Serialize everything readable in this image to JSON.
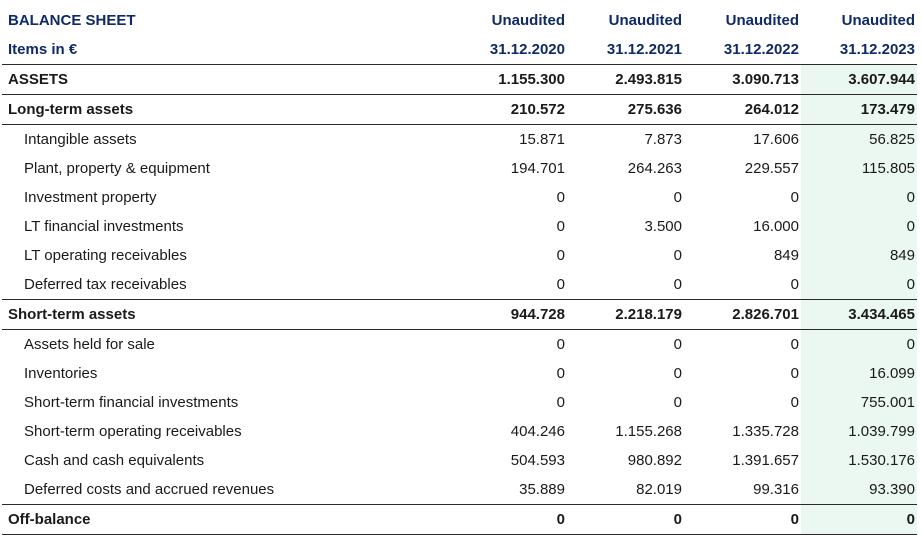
{
  "header": {
    "title": "BALANCE SHEET",
    "units": "Items in €",
    "columns": [
      {
        "status": "Unaudited",
        "date": "31.12.2020"
      },
      {
        "status": "Unaudited",
        "date": "31.12.2021"
      },
      {
        "status": "Unaudited",
        "date": "31.12.2022"
      },
      {
        "status": "Unaudited",
        "date": "31.12.2023"
      }
    ]
  },
  "rows": [
    {
      "label": "ASSETS",
      "values": [
        "1.155.300",
        "2.493.815",
        "3.090.713",
        "3.607.944"
      ]
    },
    {
      "label": "Long-term assets",
      "values": [
        "210.572",
        "275.636",
        "264.012",
        "173.479"
      ]
    },
    {
      "label": "Intangible assets",
      "values": [
        "15.871",
        "7.873",
        "17.606",
        "56.825"
      ]
    },
    {
      "label": "Plant, property & equipment",
      "values": [
        "194.701",
        "264.263",
        "229.557",
        "115.805"
      ]
    },
    {
      "label": "Investment property",
      "values": [
        "0",
        "0",
        "0",
        "0"
      ]
    },
    {
      "label": "LT financial investments",
      "values": [
        "0",
        "3.500",
        "16.000",
        "0"
      ]
    },
    {
      "label": "LT operating receivables",
      "values": [
        "0",
        "0",
        "849",
        "849"
      ]
    },
    {
      "label": "Deferred tax receivables",
      "values": [
        "0",
        "0",
        "0",
        "0"
      ]
    },
    {
      "label": "Short-term assets",
      "values": [
        "944.728",
        "2.218.179",
        "2.826.701",
        "3.434.465"
      ]
    },
    {
      "label": "Assets held for sale",
      "values": [
        "0",
        "0",
        "0",
        "0"
      ]
    },
    {
      "label": "Inventories",
      "values": [
        "0",
        "0",
        "0",
        "16.099"
      ]
    },
    {
      "label": "Short-term financial investments",
      "values": [
        "0",
        "0",
        "0",
        "755.001"
      ]
    },
    {
      "label": "Short-term operating receivables",
      "values": [
        "404.246",
        "1.155.268",
        "1.335.728",
        "1.039.799"
      ]
    },
    {
      "label": "Cash and cash equivalents",
      "values": [
        "504.593",
        "980.892",
        "1.391.657",
        "1.530.176"
      ]
    },
    {
      "label": "Deferred costs and accrued revenues",
      "values": [
        "35.889",
        "82.019",
        "99.316",
        "93.390"
      ]
    },
    {
      "label": "Off-balance",
      "values": [
        "0",
        "0",
        "0",
        "0"
      ]
    }
  ]
}
